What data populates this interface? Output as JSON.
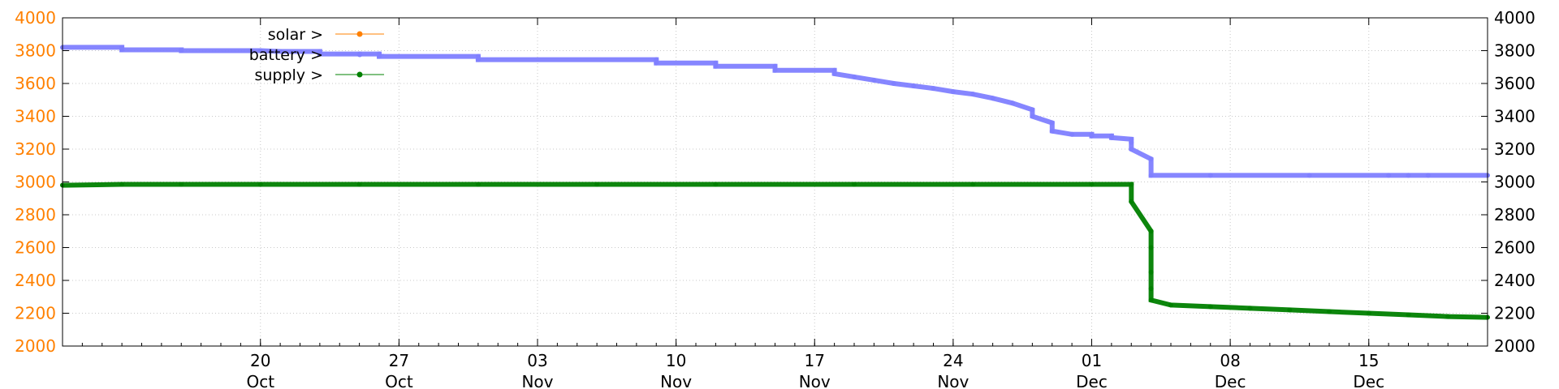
{
  "chart_data": {
    "type": "scatter",
    "title": "",
    "xlabel": "",
    "ylabel": "",
    "ylim": [
      2000,
      4000
    ],
    "yticks": [
      2000,
      2200,
      2400,
      2600,
      2800,
      3000,
      3200,
      3400,
      3600,
      3800,
      4000
    ],
    "xlim": [
      "2023-10-10",
      "2023-12-21"
    ],
    "xticks": [
      {
        "date": "2023-10-20",
        "day": "20",
        "month": "Oct"
      },
      {
        "date": "2023-10-27",
        "day": "27",
        "month": "Oct"
      },
      {
        "date": "2023-11-03",
        "day": "03",
        "month": "Nov"
      },
      {
        "date": "2023-11-10",
        "day": "10",
        "month": "Nov"
      },
      {
        "date": "2023-11-17",
        "day": "17",
        "month": "Nov"
      },
      {
        "date": "2023-11-24",
        "day": "24",
        "month": "Nov"
      },
      {
        "date": "2023-12-01",
        "day": "01",
        "month": "Dec"
      },
      {
        "date": "2023-12-08",
        "day": "08",
        "month": "Dec"
      },
      {
        "date": "2023-12-15",
        "day": "15",
        "month": "Dec"
      }
    ],
    "grid": true,
    "legend_position": "top-left",
    "left_axis_color": "#ff8000",
    "series": [
      {
        "name": "solar >",
        "color": "#ff8000",
        "x": [],
        "y": []
      },
      {
        "name": "battery >",
        "color": "#8080ff",
        "x": [
          "2023-10-10",
          "2023-10-13",
          "2023-10-13",
          "2023-10-16",
          "2023-10-16",
          "2023-10-20",
          "2023-10-21",
          "2023-10-23",
          "2023-10-23",
          "2023-10-26",
          "2023-10-26",
          "2023-10-31",
          "2023-10-31",
          "2023-11-09",
          "2023-11-09",
          "2023-11-12",
          "2023-11-12",
          "2023-11-15",
          "2023-11-15",
          "2023-11-18",
          "2023-11-18",
          "2023-11-19",
          "2023-11-20",
          "2023-11-21",
          "2023-11-22",
          "2023-11-23",
          "2023-11-24",
          "2023-11-25",
          "2023-11-26",
          "2023-11-27",
          "2023-11-28",
          "2023-11-28",
          "2023-11-29",
          "2023-11-29",
          "2023-11-30",
          "2023-12-01",
          "2023-12-01",
          "2023-12-02",
          "2023-12-02",
          "2023-12-03",
          "2023-12-03",
          "2023-12-03",
          "2023-12-04",
          "2023-12-04",
          "2023-12-07",
          "2023-12-12",
          "2023-12-16",
          "2023-12-17",
          "2023-12-18",
          "2023-12-21"
        ],
        "y": [
          3820,
          3820,
          3805,
          3805,
          3800,
          3800,
          3795,
          3795,
          3780,
          3780,
          3765,
          3765,
          3745,
          3745,
          3725,
          3725,
          3705,
          3705,
          3680,
          3680,
          3660,
          3640,
          3620,
          3600,
          3585,
          3570,
          3550,
          3535,
          3510,
          3480,
          3440,
          3400,
          3360,
          3310,
          3290,
          3290,
          3280,
          3280,
          3270,
          3260,
          3240,
          3200,
          3140,
          3040,
          3040,
          3040,
          3040,
          3040,
          3040,
          3040
        ]
      },
      {
        "name": "supply >",
        "color": "#008000",
        "x": [
          "2023-10-10",
          "2023-10-13",
          "2023-10-16",
          "2023-10-20",
          "2023-10-25",
          "2023-10-31",
          "2023-11-06",
          "2023-11-12",
          "2023-11-19",
          "2023-11-19",
          "2023-11-25",
          "2023-12-01",
          "2023-12-03",
          "2023-12-03",
          "2023-12-04",
          "2023-12-04",
          "2023-12-04",
          "2023-12-04",
          "2023-12-04",
          "2023-12-05",
          "2023-12-07",
          "2023-12-09",
          "2023-12-11",
          "2023-12-13",
          "2023-12-15",
          "2023-12-17",
          "2023-12-19",
          "2023-12-21"
        ],
        "y": [
          2980,
          2985,
          2985,
          2985,
          2985,
          2985,
          2985,
          2985,
          2985,
          2985,
          2985,
          2985,
          2985,
          2880,
          2700,
          2600,
          2450,
          2350,
          2280,
          2250,
          2240,
          2230,
          2220,
          2210,
          2200,
          2190,
          2180,
          2175
        ]
      }
    ]
  }
}
